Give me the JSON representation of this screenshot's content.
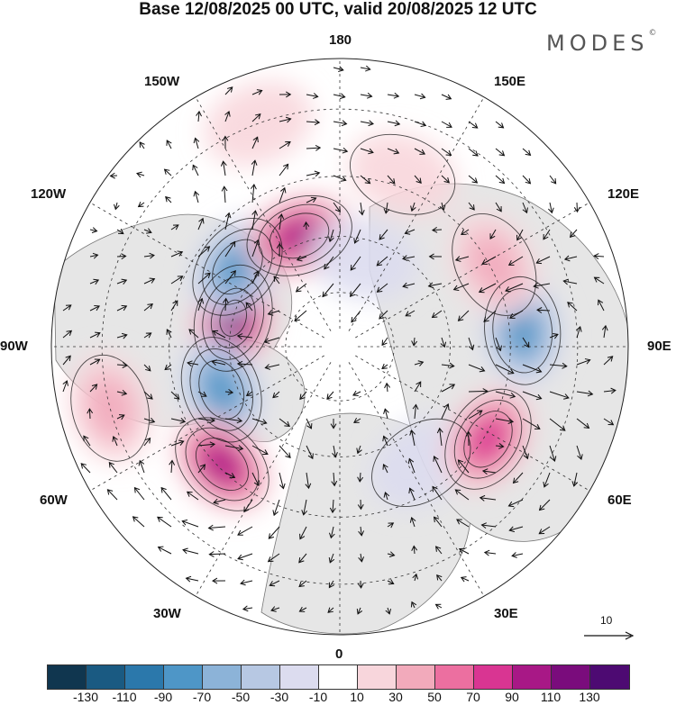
{
  "title": "Base 12/08/2025 00 UTC, valid 20/08/2025 12 UTC",
  "brand": "MODES",
  "brand_mark": "©",
  "longitude_labels": {
    "lon_180": "180",
    "lon_150e": "150E",
    "lon_120e": "120E",
    "lon_90e": "90E",
    "lon_60e": "60E",
    "lon_30e": "30E",
    "lon_0": "0",
    "lon_30w": "30W",
    "lon_60w": "60W",
    "lon_90w": "90W",
    "lon_120w": "120W",
    "lon_150w": "150W"
  },
  "wind_scale": {
    "value": "10"
  },
  "colorbar": {
    "colors": [
      "#10364f",
      "#1a5a82",
      "#2b78ab",
      "#4e96c7",
      "#8cb3d8",
      "#b7c8e3",
      "#dcdcef",
      "#ffffff",
      "#f8d6dc",
      "#f2aabb",
      "#ec6fa0",
      "#d93592",
      "#a81886",
      "#7a0c7c",
      "#4d0a72"
    ],
    "ticks": [
      "-130",
      "-110",
      "-90",
      "-70",
      "-50",
      "-30",
      "-10",
      "10",
      "30",
      "50",
      "70",
      "90",
      "110",
      "130"
    ]
  },
  "anomaly_centers": [
    {
      "lon": -105,
      "lat": 60,
      "value": 130
    },
    {
      "lon": -70,
      "lat": 56,
      "value": -90
    },
    {
      "lon": -128,
      "lat": 55,
      "value": -90
    },
    {
      "lon": -160,
      "lat": 58,
      "value": 100
    },
    {
      "lon": -45,
      "lat": 46,
      "value": 100
    },
    {
      "lon": 35,
      "lat": 52,
      "value": -30
    },
    {
      "lon": 58,
      "lat": 44,
      "value": 90
    },
    {
      "lon": 95,
      "lat": 42,
      "value": -80
    },
    {
      "lon": 118,
      "lat": 44,
      "value": 50
    },
    {
      "lon": 160,
      "lat": 42,
      "value": 30
    },
    {
      "lon": -75,
      "lat": 30,
      "value": 40
    },
    {
      "lon": -160,
      "lat": 30,
      "value": 20
    },
    {
      "lon": 165,
      "lat": 65,
      "value": -20
    }
  ]
}
